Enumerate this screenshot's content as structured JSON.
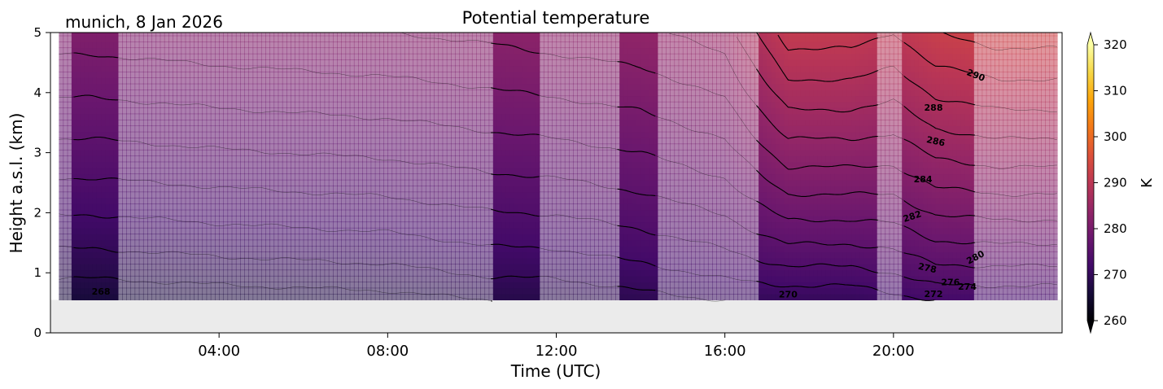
{
  "chart_data": {
    "type": "heatmap",
    "title": "Potential temperature",
    "location_label": "munich, 8 Jan 2026",
    "xlabel": "Time (UTC)",
    "ylabel": "Height a.s.l. (km)",
    "xlim_hours": [
      0,
      24
    ],
    "ylim_km": [
      0,
      5
    ],
    "x_ticks": [
      {
        "hour": 4,
        "label": "04:00"
      },
      {
        "hour": 8,
        "label": "08:00"
      },
      {
        "hour": 12,
        "label": "12:00"
      },
      {
        "hour": 16,
        "label": "16:00"
      },
      {
        "hour": 20,
        "label": "20:00"
      }
    ],
    "y_ticks": [
      0,
      1,
      2,
      3,
      4,
      5
    ],
    "ground_level_km": 0.55,
    "ground_color": "#ebebeb",
    "colorbar": {
      "label": "K",
      "min": 260,
      "max": 320,
      "ticks": [
        260,
        270,
        280,
        290,
        300,
        310,
        320
      ],
      "extend": "both",
      "colormap": "inferno"
    },
    "opaque_bands_hours": [
      [
        0.55,
        1.6
      ],
      [
        10.45,
        11.6
      ],
      [
        13.45,
        14.35
      ],
      [
        16.75,
        19.65
      ],
      [
        20.25,
        21.95
      ]
    ],
    "theta_profiles": [
      {
        "hour": 0.2,
        "surface_K": 266,
        "top_K": 281
      },
      {
        "hour": 1.0,
        "surface_K": 266,
        "top_K": 281
      },
      {
        "hour": 4.0,
        "surface_K": 266.5,
        "top_K": 281.5
      },
      {
        "hour": 8.0,
        "surface_K": 267,
        "top_K": 282
      },
      {
        "hour": 10.5,
        "surface_K": 268,
        "top_K": 282.5
      },
      {
        "hour": 12.0,
        "surface_K": 268,
        "top_K": 283
      },
      {
        "hour": 14.0,
        "surface_K": 269,
        "top_K": 283.5
      },
      {
        "hour": 16.0,
        "surface_K": 270,
        "top_K": 285
      },
      {
        "hour": 17.5,
        "surface_K": 270,
        "top_K": 291
      },
      {
        "hour": 19.0,
        "surface_K": 270,
        "top_K": 291
      },
      {
        "hour": 20.0,
        "surface_K": 271,
        "top_K": 290
      },
      {
        "hour": 21.0,
        "surface_K": 272,
        "top_K": 292
      },
      {
        "hour": 22.5,
        "surface_K": 272,
        "top_K": 293
      },
      {
        "hour": 23.9,
        "surface_K": 272,
        "top_K": 293
      }
    ],
    "contour_labels": [
      {
        "hour": 1.2,
        "km": 0.68,
        "text": "268",
        "angle": 0
      },
      {
        "hour": 17.5,
        "km": 0.63,
        "text": "270",
        "angle": 0
      },
      {
        "hour": 20.95,
        "km": 0.64,
        "text": "272",
        "angle": 0
      },
      {
        "hour": 21.75,
        "km": 0.76,
        "text": "274",
        "angle": 0
      },
      {
        "hour": 21.35,
        "km": 0.83,
        "text": "276",
        "angle": 0
      },
      {
        "hour": 20.8,
        "km": 1.07,
        "text": "278",
        "angle": 12
      },
      {
        "hour": 21.95,
        "km": 1.25,
        "text": "280",
        "angle": -28
      },
      {
        "hour": 20.45,
        "km": 1.93,
        "text": "282",
        "angle": -18
      },
      {
        "hour": 20.7,
        "km": 2.55,
        "text": "284",
        "angle": 0
      },
      {
        "hour": 21.0,
        "km": 3.18,
        "text": "286",
        "angle": 12
      },
      {
        "hour": 20.95,
        "km": 3.74,
        "text": "288",
        "angle": 0
      },
      {
        "hour": 21.95,
        "km": 4.28,
        "text": "290",
        "angle": 22
      }
    ]
  }
}
